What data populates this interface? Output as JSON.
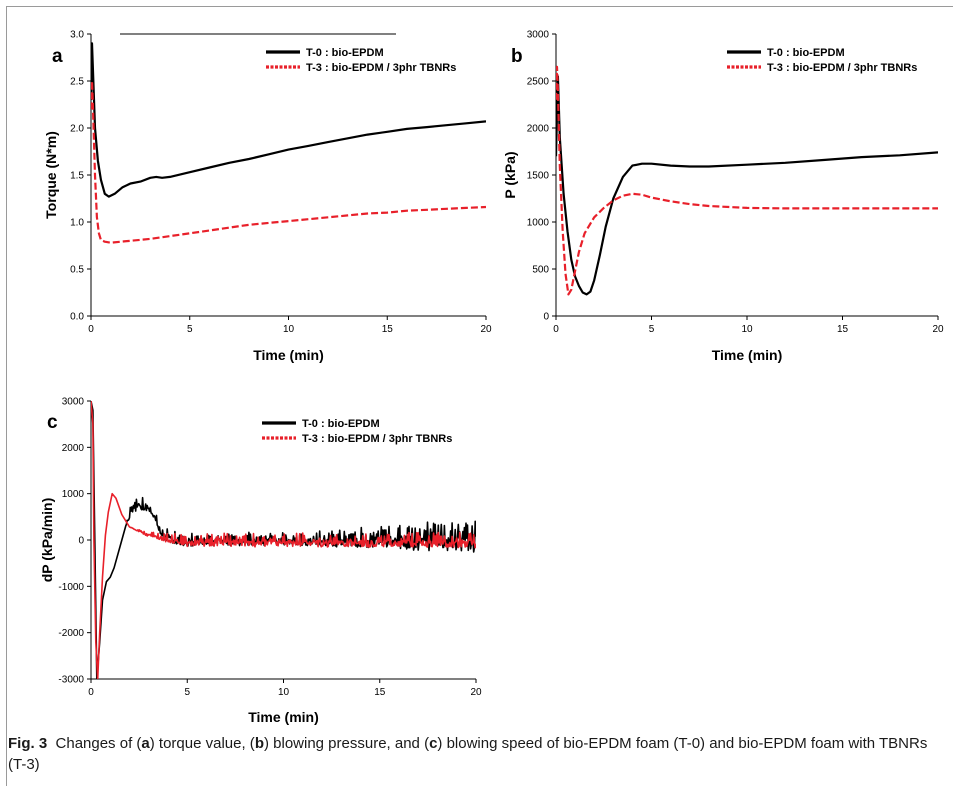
{
  "caption": {
    "label": "Fig. 3",
    "p1": "Changes of (",
    "a": "a",
    "p2": ") torque value, (",
    "b": "b",
    "p3": ") blowing pressure, and (",
    "c": "c",
    "p4": ") blowing speed of bio-EPDM foam (T-0) and bio-EPDM foam with TBNRs (T-3)"
  },
  "colors": {
    "t0": "#000000",
    "t3": "#e8202a",
    "frame": "#9a9a9a"
  },
  "chart_data": [
    {
      "type": "line",
      "panel": "a",
      "xlabel": "Time (min)",
      "ylabel": "Torque (N*m)",
      "xlim": [
        0,
        20
      ],
      "ylim": [
        0,
        3
      ],
      "xticks": [
        0,
        5,
        10,
        15,
        20
      ],
      "yticks": [
        "0.0",
        "0.5",
        "1.0",
        "1.5",
        "2.0",
        "2.5",
        "3.0"
      ],
      "legend_position": "top-right",
      "series": [
        {
          "name": "T-0 : bio-EPDM",
          "color": "#000000",
          "style": "solid",
          "x": [
            0,
            0.05,
            0.1,
            0.2,
            0.35,
            0.5,
            0.7,
            0.9,
            1.2,
            1.6,
            2,
            2.5,
            3,
            3.3,
            3.6,
            4,
            5,
            6,
            7,
            8,
            9,
            10,
            11,
            12,
            13,
            14,
            15,
            16,
            17,
            18,
            19,
            20
          ],
          "y": [
            2.3,
            2.9,
            2.6,
            2.0,
            1.65,
            1.45,
            1.3,
            1.27,
            1.3,
            1.37,
            1.41,
            1.43,
            1.47,
            1.48,
            1.47,
            1.48,
            1.53,
            1.58,
            1.63,
            1.67,
            1.72,
            1.77,
            1.81,
            1.85,
            1.89,
            1.93,
            1.96,
            1.99,
            2.01,
            2.03,
            2.05,
            2.07
          ]
        },
        {
          "name": "T-3 : bio-EPDM / 3phr TBNRs",
          "color": "#e8202a",
          "style": "dashed",
          "x": [
            0,
            0.05,
            0.1,
            0.2,
            0.3,
            0.4,
            0.5,
            0.7,
            1,
            1.5,
            2,
            3,
            4,
            5,
            6,
            7,
            8,
            9,
            10,
            11,
            12,
            13,
            14,
            15,
            16,
            17,
            18,
            19,
            20
          ],
          "y": [
            2.2,
            2.5,
            2.2,
            1.5,
            1.05,
            0.88,
            0.81,
            0.79,
            0.78,
            0.79,
            0.8,
            0.82,
            0.85,
            0.88,
            0.91,
            0.94,
            0.97,
            0.99,
            1.01,
            1.03,
            1.05,
            1.07,
            1.09,
            1.1,
            1.12,
            1.13,
            1.14,
            1.15,
            1.16
          ]
        }
      ]
    },
    {
      "type": "line",
      "panel": "b",
      "xlabel": "Time (min)",
      "ylabel": "P (kPa)",
      "xlim": [
        0,
        20
      ],
      "ylim": [
        0,
        3000
      ],
      "xticks": [
        0,
        5,
        10,
        15,
        20
      ],
      "yticks": [
        "0",
        "500",
        "1000",
        "1500",
        "2000",
        "2500",
        "3000"
      ],
      "legend_position": "top-right",
      "series": [
        {
          "name": "T-0 : bio-EPDM",
          "color": "#000000",
          "style": "solid",
          "x": [
            0,
            0.1,
            0.2,
            0.4,
            0.6,
            0.8,
            1,
            1.2,
            1.4,
            1.6,
            1.8,
            2,
            2.3,
            2.6,
            3,
            3.5,
            4,
            4.5,
            5,
            6,
            7,
            8,
            10,
            12,
            14,
            16,
            18,
            20
          ],
          "y": [
            1700,
            2550,
            1900,
            1300,
            900,
            600,
            420,
            320,
            250,
            230,
            260,
            380,
            650,
            950,
            1250,
            1480,
            1600,
            1620,
            1620,
            1600,
            1590,
            1590,
            1610,
            1630,
            1660,
            1690,
            1710,
            1740
          ]
        },
        {
          "name": "T-3 : bio-EPDM / 3phr TBNRs",
          "color": "#e8202a",
          "style": "dashed",
          "x": [
            0,
            0.05,
            0.1,
            0.2,
            0.35,
            0.5,
            0.65,
            0.8,
            1,
            1.2,
            1.5,
            2,
            2.5,
            3,
            3.5,
            4,
            4.5,
            5,
            6,
            7,
            8,
            10,
            12,
            14,
            16,
            18,
            20
          ],
          "y": [
            2300,
            2650,
            2400,
            1600,
            900,
            450,
            230,
            280,
            480,
            680,
            880,
            1050,
            1150,
            1230,
            1280,
            1300,
            1290,
            1260,
            1220,
            1190,
            1170,
            1150,
            1145,
            1145,
            1145,
            1145,
            1145
          ]
        }
      ]
    },
    {
      "type": "line",
      "panel": "c",
      "xlabel": "Time (min)",
      "ylabel": "dP (kPa/min)",
      "xlim": [
        0,
        20
      ],
      "ylim": [
        -3000,
        3000
      ],
      "xticks": [
        0,
        5,
        10,
        15,
        20
      ],
      "yticks": [
        "-3000",
        "-2000",
        "-1000",
        "0",
        "1000",
        "2000",
        "3000"
      ],
      "legend_position": "top-right",
      "series": [
        {
          "name": "T-0 : bio-EPDM",
          "color": "#000000",
          "style": "solid",
          "x": [
            0,
            0.1,
            0.2,
            0.3,
            0.45,
            0.6,
            0.8,
            1,
            1.2,
            1.5,
            1.8,
            2.1,
            2.5,
            3,
            3.3,
            3.7,
            4.2,
            5,
            7,
            10,
            13,
            16,
            18,
            20
          ],
          "y": [
            3000,
            2800,
            0,
            -3000,
            -2200,
            -1300,
            -900,
            -800,
            -600,
            -150,
            300,
            700,
            800,
            750,
            550,
            150,
            50,
            0,
            20,
            30,
            40,
            60,
            80,
            90
          ],
          "noise": [
            0,
            0,
            0,
            0,
            0,
            0,
            0,
            0,
            0,
            0,
            0,
            150,
            150,
            150,
            150,
            150,
            150,
            150,
            150,
            150,
            200,
            280,
            320,
            350
          ]
        },
        {
          "name": "T-3 : bio-EPDM / 3phr TBNRs",
          "color": "#e8202a",
          "style": "dashed",
          "x": [
            0,
            0.1,
            0.15,
            0.25,
            0.35,
            0.45,
            0.6,
            0.75,
            0.9,
            1.1,
            1.3,
            1.6,
            2,
            3,
            4,
            5,
            7,
            10,
            15,
            20
          ],
          "y": [
            3000,
            2500,
            0,
            -2200,
            -3000,
            -2000,
            -800,
            100,
            600,
            1000,
            900,
            550,
            280,
            120,
            40,
            0,
            0,
            0,
            0,
            0
          ],
          "noise": [
            0,
            0,
            0,
            0,
            0,
            0,
            0,
            0,
            0,
            0,
            0,
            0,
            0,
            60,
            100,
            140,
            150,
            150,
            160,
            170
          ]
        }
      ]
    }
  ]
}
